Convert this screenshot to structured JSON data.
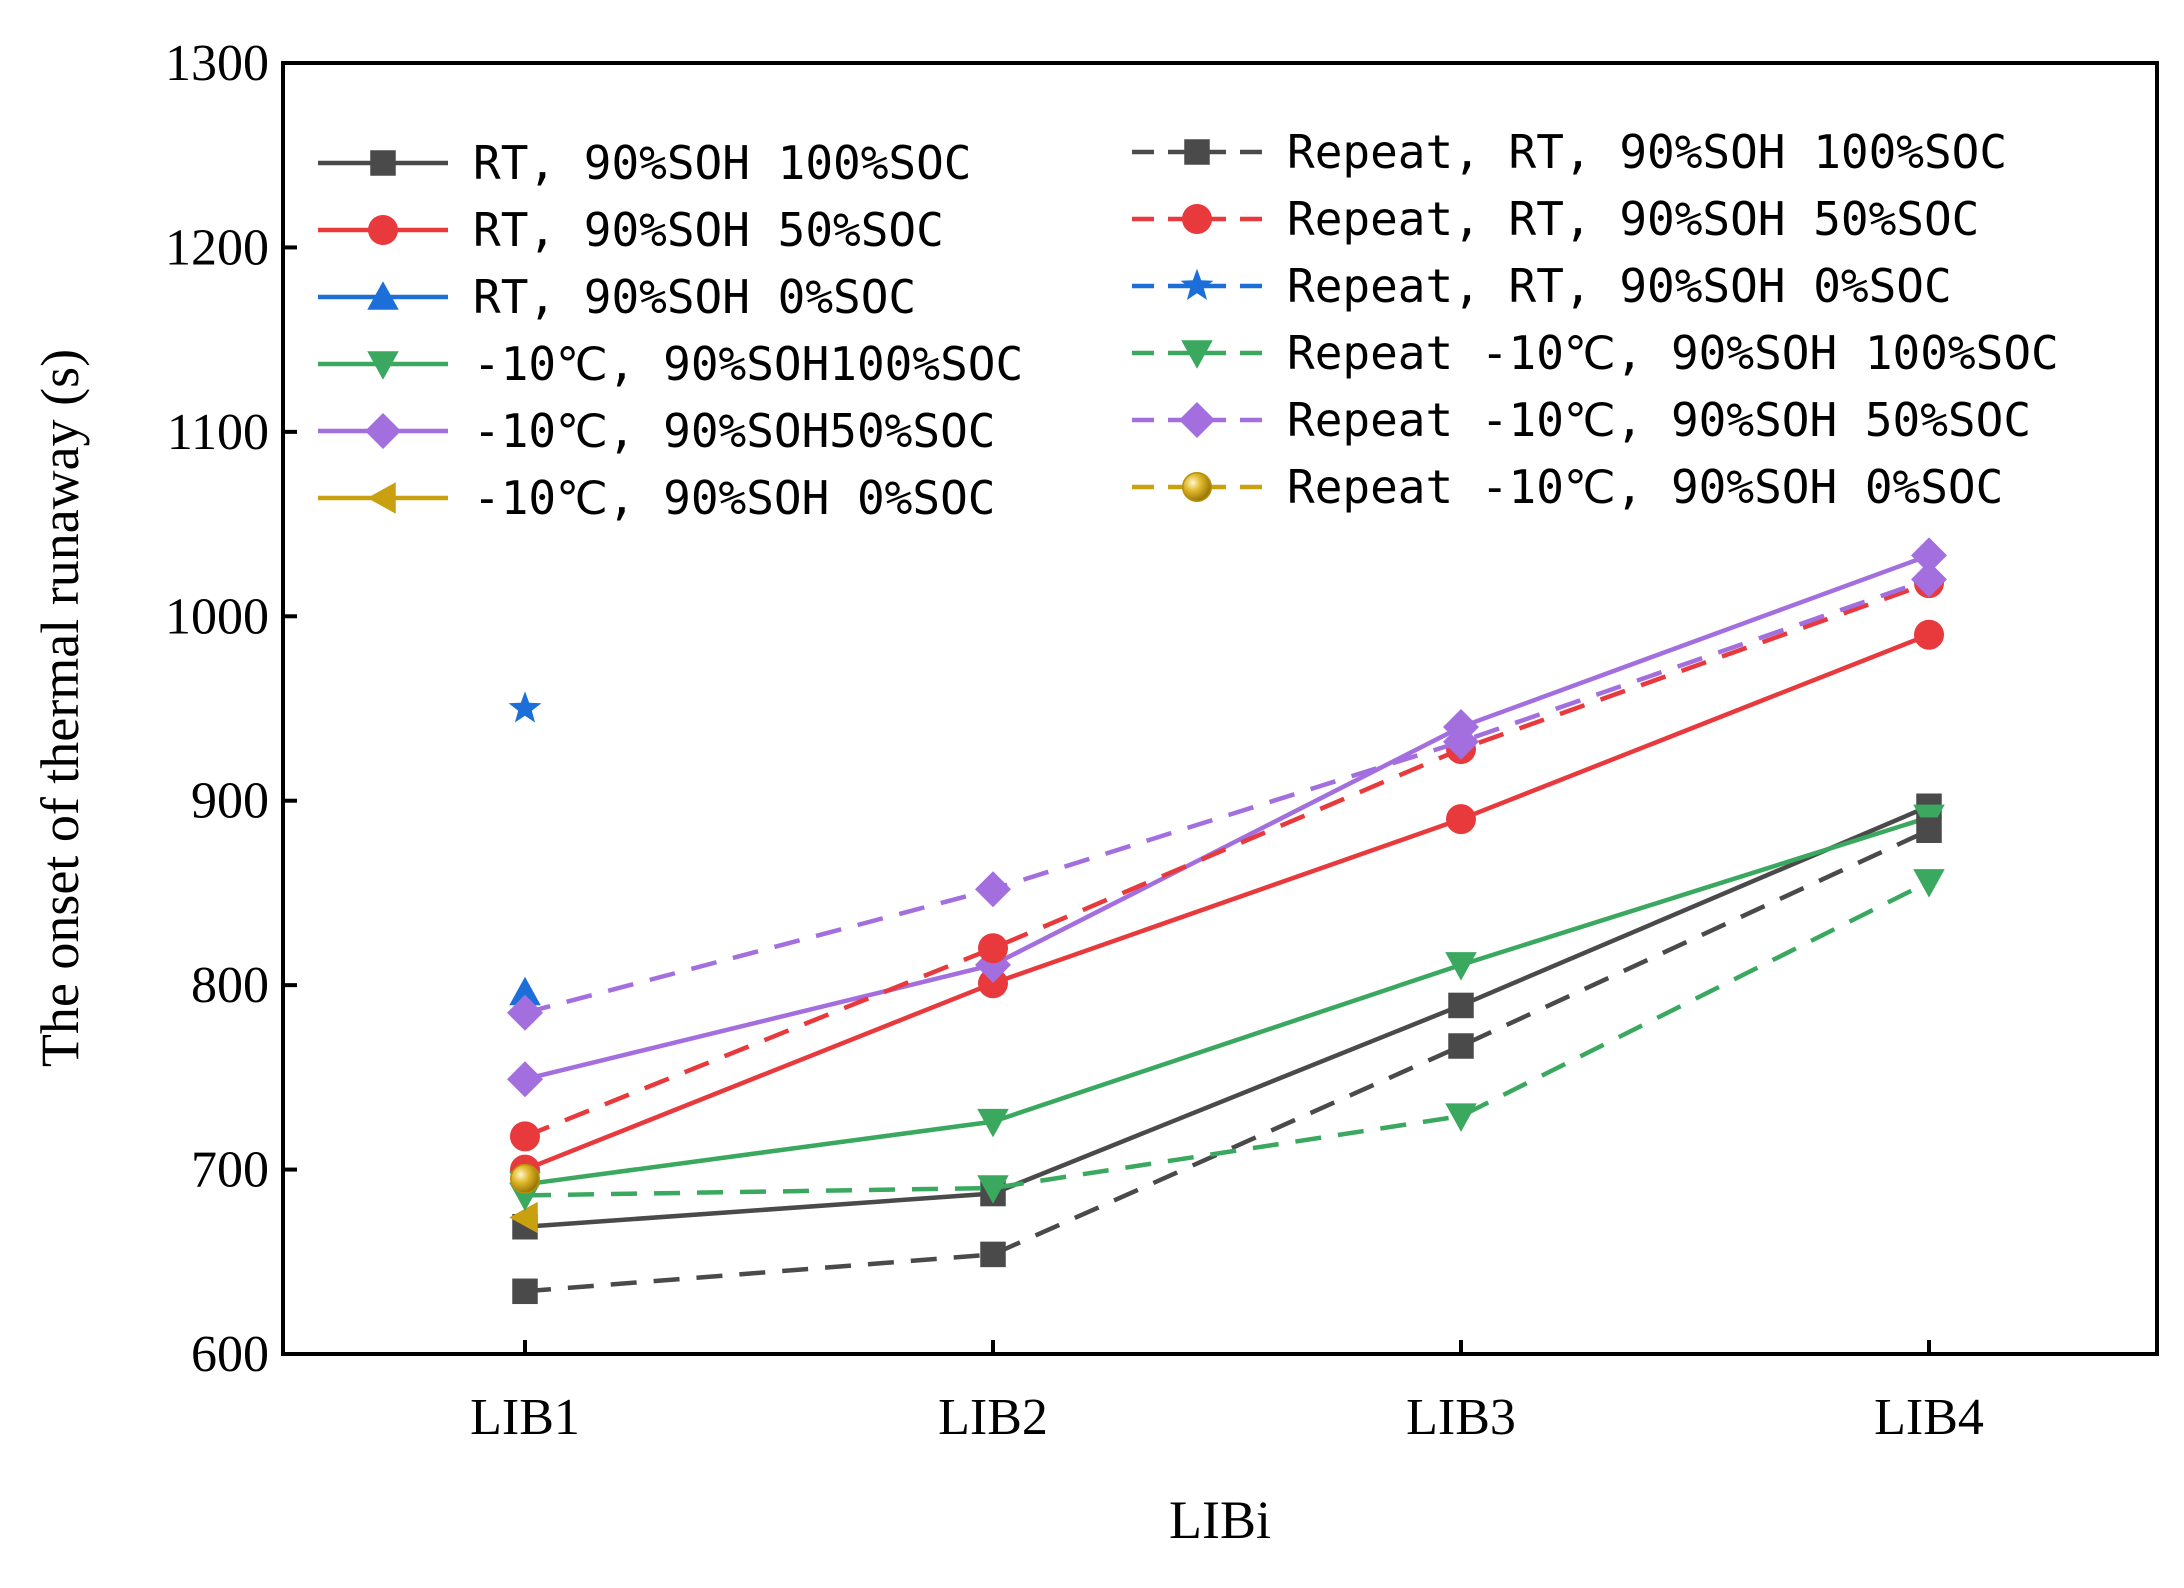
{
  "chart_data": {
    "type": "line",
    "title": "",
    "xlabel": "LIBi",
    "ylabel": "The onset of thermal runaway (s)",
    "categories": [
      "LIB1",
      "LIB2",
      "LIB3",
      "LIB4"
    ],
    "ylim": [
      600,
      1300
    ],
    "yticks": [
      600,
      700,
      800,
      900,
      1000,
      1100,
      1200,
      1300
    ],
    "ytick_labels": [
      "600",
      "700",
      "800",
      "900",
      "1000",
      "1100",
      "1200",
      "1300"
    ],
    "legend_position": "top, two columns",
    "series": [
      {
        "name": "RT, 90%SOH 100%SOC",
        "color": "#4a4a4a",
        "dash": false,
        "marker": "square",
        "values": [
          669,
          687,
          789,
          897
        ]
      },
      {
        "name": "RT, 90%SOH 50%SOC",
        "color": "#e8393c",
        "dash": false,
        "marker": "circle",
        "values": [
          700,
          801,
          890,
          990
        ]
      },
      {
        "name": "RT, 90%SOH 0%SOC",
        "color": "#1c6fd8",
        "dash": false,
        "marker": "triangle-up",
        "values": [
          796,
          null,
          null,
          null
        ]
      },
      {
        "name": "-10℃, 90%SOH100%SOC",
        "color": "#3aa85f",
        "dash": false,
        "marker": "triangle-down",
        "values": [
          692,
          726,
          811,
          891
        ]
      },
      {
        "name": "-10℃, 90%SOH50%SOC",
        "color": "#a36fde",
        "dash": false,
        "marker": "diamond",
        "values": [
          749,
          811,
          940,
          1033
        ]
      },
      {
        "name": "-10℃, 90%SOH 0%SOC",
        "color": "#c9a010",
        "dash": false,
        "marker": "triangle-left",
        "values": [
          674,
          null,
          null,
          null
        ]
      },
      {
        "name": "Repeat, RT, 90%SOH 100%SOC",
        "color": "#4a4a4a",
        "dash": true,
        "marker": "square",
        "values": [
          634,
          654,
          767,
          884
        ]
      },
      {
        "name": "Repeat, RT, 90%SOH 50%SOC",
        "color": "#e8393c",
        "dash": true,
        "marker": "circle",
        "values": [
          718,
          820,
          928,
          1018
        ]
      },
      {
        "name": "Repeat, RT, 90%SOH 0%SOC",
        "color": "#1c6fd8",
        "dash": true,
        "marker": "star",
        "values": [
          950,
          null,
          null,
          null
        ]
      },
      {
        "name": "Repeat -10℃, 90%SOH 100%SOC",
        "color": "#3aa85f",
        "dash": true,
        "marker": "triangle-down",
        "values": [
          686,
          690,
          729,
          856
        ]
      },
      {
        "name": "Repeat -10℃, 90%SOH 50%SOC",
        "color": "#a36fde",
        "dash": true,
        "marker": "diamond",
        "values": [
          785,
          852,
          932,
          1020
        ]
      },
      {
        "name": "Repeat -10℃, 90%SOH 0%SOC",
        "color": "#c9a010",
        "dash": true,
        "marker": "sphere",
        "values": [
          695,
          null,
          null,
          null
        ]
      }
    ]
  }
}
